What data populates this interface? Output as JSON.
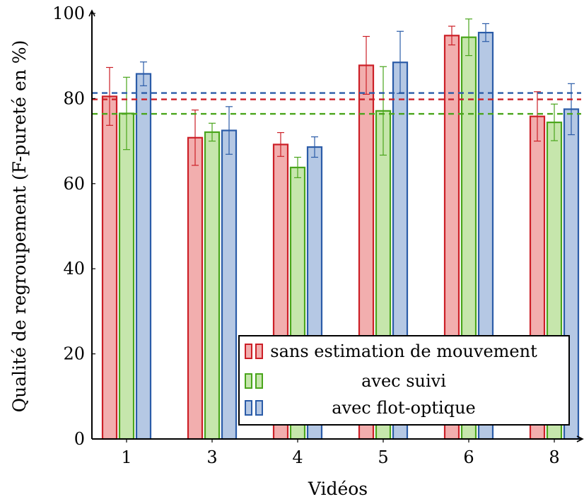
{
  "chart_data": {
    "type": "bar",
    "title": "",
    "xlabel": "Vidéos",
    "ylabel": "Qualité de regroupement (F-pureté en %)",
    "categories": [
      "1",
      "3",
      "4",
      "5",
      "6",
      "8"
    ],
    "ylim": [
      0,
      100
    ],
    "yticks": [
      "0",
      "20",
      "40",
      "60",
      "80",
      "100"
    ],
    "grid": false,
    "legend_position": "bottom-right",
    "series": [
      {
        "name": "sans estimation de mouvement",
        "color": "#cc1f27",
        "fill": "#f2aeae",
        "values": [
          80.5,
          70.8,
          69.2,
          87.8,
          94.8,
          75.8
        ],
        "err": [
          6.8,
          6.5,
          2.8,
          6.8,
          2.2,
          5.8
        ],
        "mean": 79.8
      },
      {
        "name": "avec suivi",
        "color": "#4aa51c",
        "fill": "#c6e6ac",
        "values": [
          76.5,
          72.1,
          63.8,
          77.1,
          94.4,
          74.4
        ],
        "err": [
          8.5,
          2.1,
          2.4,
          10.4,
          4.3,
          4.3
        ],
        "mean": 76.4
      },
      {
        "name": "avec flot-optique",
        "color": "#2b5ca8",
        "fill": "#b5c8e4",
        "values": [
          85.8,
          72.5,
          68.6,
          88.5,
          95.5,
          77.5
        ],
        "err": [
          2.8,
          5.6,
          2.4,
          7.3,
          2.1,
          6.0
        ],
        "mean": 81.3
      }
    ]
  }
}
